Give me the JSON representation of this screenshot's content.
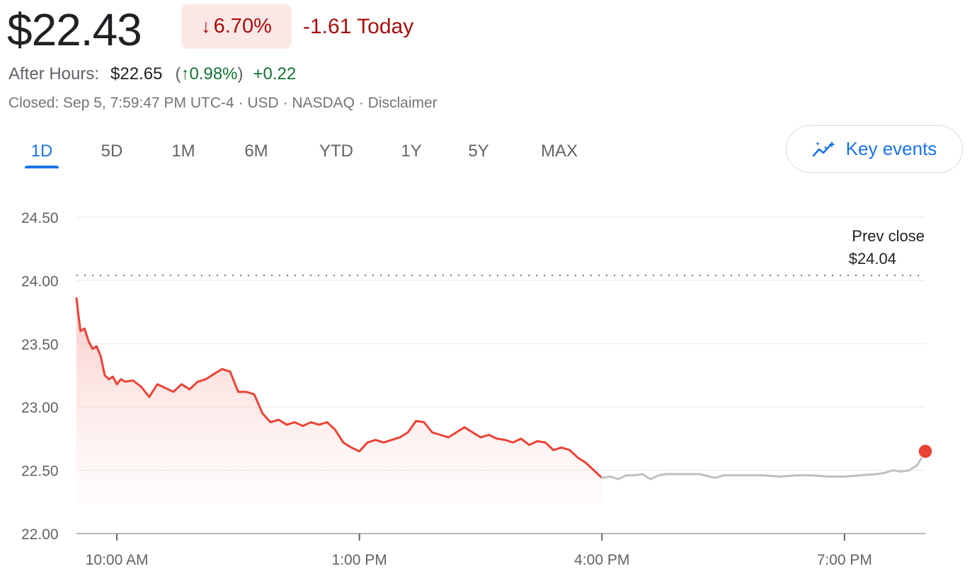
{
  "quote": {
    "price": "$22.43",
    "change_percent": "6.70%",
    "change_direction": "down",
    "change_today": "-1.61 Today",
    "after_hours_label": "After Hours:",
    "after_hours_price": "$22.65",
    "after_hours_percent": "0.98%",
    "after_hours_change": "+0.22",
    "meta": "Closed: Sep 5, 7:59:47 PM UTC-4 · USD · NASDAQ · Disclaimer"
  },
  "tabs": [
    "1D",
    "5D",
    "1M",
    "6M",
    "YTD",
    "1Y",
    "5Y",
    "MAX"
  ],
  "active_tab": "1D",
  "key_events_label": "Key events",
  "colors": {
    "negative": "#a50e0e",
    "positive": "#137333",
    "line_regular": "#ea4335",
    "line_extended": "#bdc1c6",
    "accent": "#1a73e8"
  },
  "chart_data": {
    "type": "line",
    "ylim": [
      22.0,
      24.5
    ],
    "yticks": [
      "24.50",
      "24.00",
      "23.50",
      "23.00",
      "22.50",
      "22.00"
    ],
    "xlim_hours": [
      9.5,
      20.0
    ],
    "xticks": [
      {
        "label": "10:00 AM",
        "hour": 10
      },
      {
        "label": "1:00 PM",
        "hour": 13
      },
      {
        "label": "4:00 PM",
        "hour": 16
      },
      {
        "label": "7:00 PM",
        "hour": 19
      }
    ],
    "grid": true,
    "reference_line": {
      "label": "Prev close",
      "value_label": "$24.04",
      "value": 24.04
    },
    "series": [
      {
        "session": "regular",
        "x": [
          9.5,
          9.52,
          9.55,
          9.6,
          9.65,
          9.7,
          9.75,
          9.8,
          9.85,
          9.9,
          9.95,
          10.0,
          10.05,
          10.1,
          10.2,
          10.3,
          10.4,
          10.5,
          10.6,
          10.7,
          10.8,
          10.9,
          11.0,
          11.1,
          11.2,
          11.3,
          11.4,
          11.5,
          11.6,
          11.7,
          11.8,
          11.9,
          12.0,
          12.1,
          12.2,
          12.3,
          12.4,
          12.5,
          12.6,
          12.7,
          12.8,
          12.9,
          13.0,
          13.1,
          13.2,
          13.3,
          13.4,
          13.5,
          13.6,
          13.7,
          13.8,
          13.9,
          14.0,
          14.1,
          14.2,
          14.3,
          14.4,
          14.5,
          14.6,
          14.7,
          14.8,
          14.9,
          15.0,
          15.1,
          15.2,
          15.3,
          15.4,
          15.5,
          15.6,
          15.7,
          15.8,
          15.9,
          16.0
        ],
        "y": [
          23.86,
          23.75,
          23.6,
          23.62,
          23.52,
          23.46,
          23.48,
          23.4,
          23.25,
          23.22,
          23.24,
          23.18,
          23.22,
          23.2,
          23.21,
          23.16,
          23.08,
          23.18,
          23.15,
          23.12,
          23.18,
          23.14,
          23.2,
          23.22,
          23.26,
          23.3,
          23.28,
          23.12,
          23.12,
          23.1,
          22.95,
          22.88,
          22.9,
          22.86,
          22.88,
          22.85,
          22.88,
          22.86,
          22.88,
          22.82,
          22.72,
          22.68,
          22.65,
          22.72,
          22.74,
          22.72,
          22.74,
          22.76,
          22.8,
          22.89,
          22.88,
          22.8,
          22.78,
          22.76,
          22.8,
          22.84,
          22.8,
          22.76,
          22.78,
          22.75,
          22.74,
          22.72,
          22.75,
          22.7,
          22.73,
          22.72,
          22.66,
          22.68,
          22.66,
          22.6,
          22.56,
          22.5,
          22.44
        ]
      },
      {
        "session": "extended",
        "x": [
          16.0,
          16.1,
          16.2,
          16.3,
          16.4,
          16.5,
          16.6,
          16.7,
          16.8,
          16.9,
          17.0,
          17.2,
          17.4,
          17.5,
          17.6,
          17.8,
          18.0,
          18.2,
          18.4,
          18.6,
          18.8,
          19.0,
          19.2,
          19.4,
          19.5,
          19.6,
          19.7,
          19.8,
          19.9,
          20.0
        ],
        "y": [
          22.44,
          22.45,
          22.43,
          22.46,
          22.46,
          22.47,
          22.43,
          22.46,
          22.47,
          22.47,
          22.47,
          22.47,
          22.44,
          22.46,
          22.46,
          22.46,
          22.46,
          22.45,
          22.46,
          22.46,
          22.45,
          22.45,
          22.46,
          22.47,
          22.48,
          22.5,
          22.49,
          22.5,
          22.54,
          22.65
        ]
      }
    ]
  }
}
